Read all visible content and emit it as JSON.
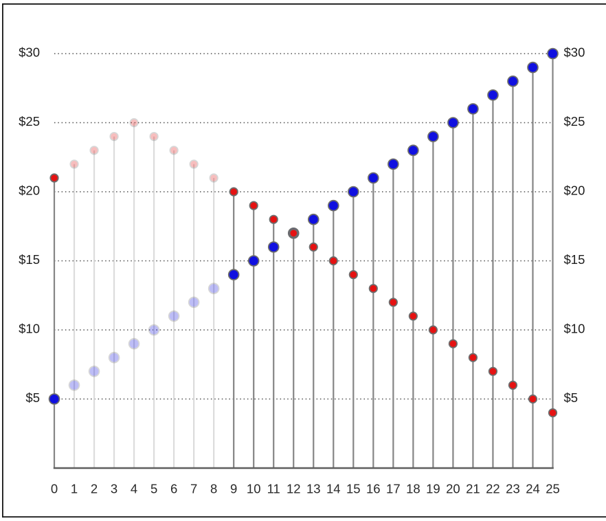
{
  "chart_data": {
    "type": "scatter",
    "variant": "lollipop-stem",
    "title": "",
    "xlabel": "",
    "ylabel": "",
    "legend": "none",
    "grid": "dotted-horizontal",
    "xlim": [
      0,
      25
    ],
    "ylim": [
      0,
      30
    ],
    "x": [
      0,
      1,
      2,
      3,
      4,
      5,
      6,
      7,
      8,
      9,
      10,
      11,
      12,
      13,
      14,
      15,
      16,
      17,
      18,
      19,
      20,
      21,
      22,
      23,
      24,
      25
    ],
    "x_tick_labels": [
      "0",
      "1",
      "2",
      "3",
      "4",
      "5",
      "6",
      "7",
      "8",
      "9",
      "10",
      "11",
      "12",
      "13",
      "14",
      "15",
      "16",
      "17",
      "18",
      "19",
      "20",
      "21",
      "22",
      "23",
      "24",
      "25"
    ],
    "y_ticks": [
      {
        "value": 5,
        "label": "$5"
      },
      {
        "value": 10,
        "label": "$10"
      },
      {
        "value": 15,
        "label": "$15"
      },
      {
        "value": 20,
        "label": "$20"
      },
      {
        "value": 25,
        "label": "$25"
      },
      {
        "value": 30,
        "label": "$30"
      }
    ],
    "y_tick_sides": "both",
    "series": [
      {
        "name": "blue",
        "color": "#1010e0",
        "marker_stroke": "#6d6d6d",
        "marker_radius": 7.4,
        "values": [
          5,
          6,
          7,
          8,
          9,
          10,
          11,
          12,
          13,
          14,
          15,
          16,
          17,
          18,
          19,
          20,
          21,
          22,
          23,
          24,
          25,
          26,
          27,
          28,
          29,
          30
        ]
      },
      {
        "name": "red",
        "color": "#e51212",
        "marker_stroke": "#6d6d6d",
        "marker_radius": 5.7,
        "values": [
          21,
          22,
          23,
          24,
          25,
          24,
          23,
          22,
          21,
          20,
          19,
          18,
          17,
          16,
          15,
          14,
          13,
          12,
          11,
          10,
          9,
          8,
          7,
          6,
          5,
          4
        ]
      }
    ],
    "faded_x": [
      1,
      2,
      3,
      4,
      5,
      6,
      7,
      8
    ],
    "faded_opacity": 0.27,
    "overlap_points": [
      {
        "x": 12,
        "value": 17,
        "note": "red dot drawn on top of blue dot"
      }
    ],
    "colors": {
      "stem_solid": "#858585",
      "stem_faded": "#dcdcdc",
      "axis": "#5e5e5e",
      "gridline": "#4f4f4f",
      "label": "#1e1e1e",
      "border": "#141414",
      "background": "#ffffff"
    }
  }
}
